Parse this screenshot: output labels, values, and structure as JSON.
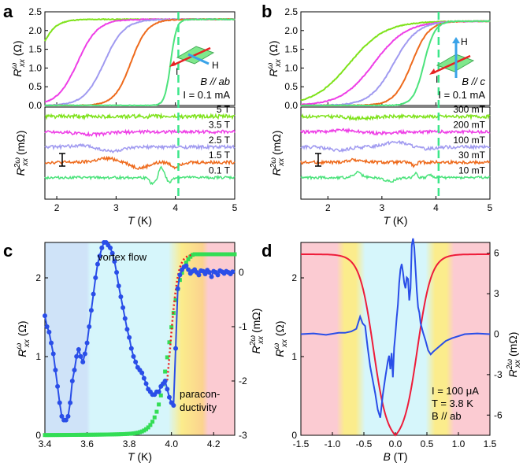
{
  "colors": {
    "green": "#7ee21a",
    "magenta": "#ee3ee6",
    "lavender": "#a09af0",
    "orange": "#ee6a1c",
    "mint": "#4ce37c",
    "red": "#ee1c3a",
    "blue": "#2a4ee8",
    "sq_green": "#33dd55",
    "dash_green": "#3ce68a",
    "dot_red": "#ee1c1c",
    "band_blue": "#cfe3f8",
    "band_cyan": "#d6f6fb",
    "band_yellow": "#fbec8c",
    "band_pink": "#fbcbd2"
  },
  "chart_data": [
    {
      "panel": "a",
      "type": "line",
      "xlabel": "T (K)",
      "xlim": [
        1.8,
        5
      ],
      "xticks": [
        "2",
        "3",
        "4",
        "5"
      ],
      "top": {
        "ylabel": "R_xx^ω (Ω)",
        "ylim": [
          0,
          2.5
        ],
        "yticks": [
          "0.0",
          "0.5",
          "1.0",
          "1.5",
          "2.0",
          "2.5"
        ],
        "series": [
          {
            "name": "5 T",
            "color": "green",
            "onset": 1.65,
            "width": 0.14,
            "rmax": 2.3
          },
          {
            "name": "3.5 T",
            "color": "magenta",
            "onset": 2.35,
            "width": 0.17,
            "rmax": 2.3
          },
          {
            "name": "2.5 T",
            "color": "lavender",
            "onset": 2.8,
            "width": 0.17,
            "rmax": 2.3
          },
          {
            "name": "1.5 T",
            "color": "orange",
            "onset": 3.25,
            "width": 0.14,
            "rmax": 2.3
          },
          {
            "name": "0.1 T",
            "color": "mint",
            "onset": 3.92,
            "width": 0.05,
            "rmax": 2.3
          }
        ],
        "annotations": [
          "B // ab",
          "I = 0.1 mA"
        ],
        "inset_labels": [
          "I",
          "H"
        ]
      },
      "bottom": {
        "ylabel": "R_xx^2ω (mΩ)",
        "curves": [
          {
            "label": "5 T",
            "color": "green",
            "offset": 0,
            "bumps": [],
            "noise": 0.6
          },
          {
            "label": "3.5 T",
            "color": "magenta",
            "offset": 1,
            "bumps": [
              [
                2.6,
                0.4,
                -0.8
              ]
            ],
            "noise": 0.5
          },
          {
            "label": "2.5 T",
            "color": "lavender",
            "offset": 2,
            "bumps": [
              [
                2.5,
                0.3,
                0.6
              ],
              [
                2.9,
                0.3,
                -1.4
              ]
            ],
            "noise": 0.5
          },
          {
            "label": "1.5 T",
            "color": "orange",
            "offset": 3,
            "bumps": [
              [
                2.85,
                0.25,
                1.2
              ],
              [
                3.4,
                0.2,
                -1.8
              ],
              [
                4.0,
                0.1,
                -1.5
              ]
            ],
            "noise": 0.5
          },
          {
            "label": "0.1 T",
            "color": "mint",
            "offset": 4,
            "bumps": [
              [
                3.62,
                0.08,
                -2.0
              ],
              [
                3.76,
                0.06,
                3.4
              ],
              [
                3.9,
                0.05,
                -1.6
              ]
            ],
            "noise": 0.4
          }
        ]
      },
      "vline": 4.05
    },
    {
      "panel": "b",
      "type": "line",
      "xlabel": "T (K)",
      "xlim": [
        1.5,
        5
      ],
      "xticks": [
        "2",
        "3",
        "4",
        "5"
      ],
      "top": {
        "ylabel": "R_xx^ω (Ω)",
        "ylim": [
          0,
          2.5
        ],
        "yticks": [
          "0.0",
          "0.5",
          "1.0",
          "1.5",
          "2.0",
          "2.5"
        ],
        "series": [
          {
            "name": "300 mT",
            "color": "green",
            "onset": 2.4,
            "width": 0.33,
            "rmax": 2.25
          },
          {
            "name": "200 mT",
            "color": "magenta",
            "onset": 2.85,
            "width": 0.3,
            "rmax": 2.25
          },
          {
            "name": "100 mT",
            "color": "lavender",
            "onset": 3.22,
            "width": 0.22,
            "rmax": 2.25
          },
          {
            "name": "30 mT",
            "color": "orange",
            "onset": 3.55,
            "width": 0.16,
            "rmax": 2.25
          },
          {
            "name": "10 mT",
            "color": "mint",
            "onset": 3.78,
            "width": 0.1,
            "rmax": 2.25
          }
        ],
        "annotations": [
          "B // c",
          "I = 0.1 mA"
        ],
        "inset_labels": [
          "I",
          "H"
        ]
      },
      "bottom": {
        "ylabel": "R_xx^2ω (mΩ)",
        "curves": [
          {
            "label": "300 mT",
            "color": "green",
            "offset": 0,
            "bumps": [
              [
                2.6,
                0.3,
                -0.6
              ]
            ],
            "noise": 0.5
          },
          {
            "label": "200 mT",
            "color": "magenta",
            "offset": 1,
            "bumps": [
              [
                2.3,
                0.25,
                0.5
              ],
              [
                3.0,
                0.3,
                -0.5
              ]
            ],
            "noise": 0.5
          },
          {
            "label": "100 mT",
            "color": "lavender",
            "offset": 2,
            "bumps": [
              [
                2.2,
                0.25,
                -1.1
              ],
              [
                3.25,
                0.3,
                1.6
              ],
              [
                3.8,
                0.2,
                -0.6
              ]
            ],
            "noise": 0.5
          },
          {
            "label": "30 mT",
            "color": "orange",
            "offset": 3,
            "bumps": [
              [
                2.5,
                0.2,
                0.8
              ],
              [
                3.6,
                0.06,
                -1.2
              ]
            ],
            "noise": 0.5
          },
          {
            "label": "10 mT",
            "color": "mint",
            "offset": 4,
            "bumps": [
              [
                2.55,
                0.1,
                1.6
              ],
              [
                3.15,
                0.15,
                -1.2
              ],
              [
                3.62,
                0.05,
                1.4
              ],
              [
                3.88,
                0.05,
                1.0
              ]
            ],
            "noise": 0.4
          }
        ]
      },
      "vline": 4.05
    },
    {
      "panel": "c",
      "type": "line+scatter",
      "xlabel": "T (K)",
      "xlim": [
        3.4,
        4.3
      ],
      "xticks": [
        "3.4",
        "3.6",
        "3.8",
        "4.0",
        "4.2"
      ],
      "ylabel": "R_xx^ω (Ω)",
      "ylim": [
        0,
        2.45
      ],
      "yticks": [
        "0",
        "1",
        "2"
      ],
      "y2label": "R_xx^2ω (mΩ)",
      "y2lim": [
        -3,
        0.55
      ],
      "y2ticks": [
        "0",
        "-1",
        "-2",
        "-3"
      ],
      "series": [
        {
          "name": "R_xx^ω",
          "color": "sq_green",
          "marker": "square",
          "axis": "left",
          "onset": 3.99,
          "width": 0.03,
          "rmax": 2.3,
          "foot": 0.012
        },
        {
          "name": "R_xx^2ω",
          "color": "blue",
          "marker": "circle",
          "axis": "right",
          "x": [
            3.4,
            3.41,
            3.42,
            3.43,
            3.44,
            3.45,
            3.46,
            3.47,
            3.48,
            3.49,
            3.5,
            3.51,
            3.52,
            3.53,
            3.54,
            3.55,
            3.56,
            3.57,
            3.58,
            3.59,
            3.6,
            3.61,
            3.62,
            3.63,
            3.64,
            3.65,
            3.66,
            3.67,
            3.68,
            3.69,
            3.7,
            3.71,
            3.72,
            3.73,
            3.74,
            3.75,
            3.76,
            3.77,
            3.78,
            3.79,
            3.8,
            3.81,
            3.82,
            3.83,
            3.84,
            3.85,
            3.86,
            3.87,
            3.88,
            3.89,
            3.9,
            3.91,
            3.92,
            3.93,
            3.94,
            3.95,
            3.96,
            3.97,
            3.98,
            3.99,
            4.0,
            4.01,
            4.02,
            4.03,
            4.04,
            4.05,
            4.06,
            4.07,
            4.08,
            4.09,
            4.1,
            4.11,
            4.12,
            4.13,
            4.14,
            4.15,
            4.16,
            4.17,
            4.18,
            4.19,
            4.2,
            4.21,
            4.22,
            4.23,
            4.24,
            4.25,
            4.26,
            4.27,
            4.28,
            4.29
          ],
          "values": [
            -0.8,
            -1.0,
            -1.1,
            -1.3,
            -1.5,
            -1.8,
            -2.1,
            -2.4,
            -2.65,
            -2.72,
            -2.72,
            -2.65,
            -2.4,
            -2.0,
            -1.8,
            -1.55,
            -1.42,
            -1.55,
            -1.65,
            -1.5,
            -1.3,
            -1.0,
            -0.7,
            -0.4,
            -0.1,
            0.15,
            0.3,
            0.45,
            0.55,
            0.55,
            0.5,
            0.45,
            0.35,
            0.2,
            0.0,
            -0.25,
            -0.45,
            -0.65,
            -0.85,
            -1.05,
            -1.2,
            -1.4,
            -1.55,
            -1.65,
            -1.75,
            -1.8,
            -1.85,
            -1.95,
            -2.05,
            -2.15,
            -2.2,
            -2.25,
            -2.25,
            -2.2,
            -2.2,
            -2.1,
            -2.05,
            -2.0,
            -2.15,
            -2.3,
            -2.4,
            -2.45,
            -1.4,
            -0.3,
            -0.05,
            0.05,
            0.1,
            0.12,
            0.05,
            -0.02,
            0.02,
            0.05,
            0.0,
            -0.05,
            0.03,
            0.02,
            -0.03,
            0.04,
            0.0,
            -0.08,
            0.02,
            0.0,
            -0.05,
            0.03,
            0.01,
            -0.02,
            0.02,
            0.0,
            -0.03,
            0.01
          ]
        },
        {
          "name": "fit",
          "color": "dot_red",
          "style": "dotted",
          "axis": "left",
          "x0": 3.98,
          "x1": 4.1
        }
      ],
      "bands": [
        {
          "from": 3.4,
          "to": 3.6,
          "color": "band_blue"
        },
        {
          "from": 3.6,
          "to": 4.0,
          "color": "band_cyan"
        },
        {
          "from": 4.0,
          "to": 4.15,
          "color": "band_yellow"
        },
        {
          "from": 4.15,
          "to": 4.3,
          "color": "band_pink"
        }
      ],
      "annotations": [
        "vortex flow",
        "paracon-",
        "ductivity"
      ]
    },
    {
      "panel": "d",
      "type": "line",
      "xlabel": "B (T)",
      "xlim": [
        -1.5,
        1.5
      ],
      "xticks": [
        "-1.5",
        "-1.0",
        "-0.5",
        "0.0",
        "0.5",
        "1.0",
        "1.5"
      ],
      "ylabel": "R_xx^ω (Ω)",
      "ylim": [
        0,
        2.45
      ],
      "yticks": [
        "0",
        "1",
        "2"
      ],
      "y2label": "R_xx^2ω (mΩ)",
      "y2lim": [
        -7.5,
        6.8
      ],
      "y2ticks": [
        "6",
        "3",
        "0",
        "-3",
        "-6"
      ],
      "series": [
        {
          "name": "R_xx^ω",
          "color": "red",
          "axis": "left",
          "shape": "V",
          "min": 0.0,
          "max": 2.3,
          "b0": 0.68,
          "w": 0.1
        },
        {
          "name": "R_xx^2ω",
          "color": "blue",
          "axis": "right",
          "x": [
            -1.5,
            -1.3,
            -1.1,
            -0.9,
            -0.8,
            -0.7,
            -0.62,
            -0.56,
            -0.52,
            -0.48,
            -0.44,
            -0.4,
            -0.36,
            -0.32,
            -0.28,
            -0.24,
            -0.2,
            -0.16,
            -0.12,
            -0.1,
            -0.08,
            -0.06,
            -0.04,
            -0.02,
            0.0,
            0.02,
            0.04,
            0.06,
            0.08,
            0.1,
            0.12,
            0.14,
            0.16,
            0.18,
            0.2,
            0.22,
            0.24,
            0.26,
            0.28,
            0.3,
            0.32,
            0.34,
            0.36,
            0.38,
            0.4,
            0.44,
            0.48,
            0.52,
            0.56,
            0.6,
            0.7,
            0.8,
            0.9,
            1.1,
            1.3,
            1.5
          ],
          "values": [
            0,
            0.05,
            -0.05,
            0.1,
            0.1,
            0.2,
            0.4,
            1.3,
            0.8,
            0.6,
            -1.0,
            -2.4,
            -3.4,
            -4.4,
            -5.6,
            -6.2,
            -4.5,
            -3.2,
            -2.0,
            -1.6,
            -2.6,
            -1.4,
            -3.2,
            -1.0,
            0.0,
            1.2,
            2.2,
            3.8,
            4.8,
            5.2,
            4.6,
            3.8,
            3.4,
            4.2,
            4.1,
            2.5,
            3.4,
            6.6,
            7.1,
            6.4,
            4.8,
            3.2,
            2.0,
            1.6,
            0.8,
            0.1,
            -0.5,
            -1.2,
            -1.5,
            -1.3,
            -0.9,
            -0.5,
            -0.3,
            0.0,
            0.05,
            0.0
          ]
        }
      ],
      "bands": [
        {
          "from": -1.5,
          "to": -0.85,
          "color": "band_pink"
        },
        {
          "from": -0.85,
          "to": -0.55,
          "color": "band_yellow"
        },
        {
          "from": -0.55,
          "to": 0.55,
          "color": "band_cyan"
        },
        {
          "from": 0.55,
          "to": 0.85,
          "color": "band_yellow"
        },
        {
          "from": 0.85,
          "to": 1.5,
          "color": "band_pink"
        }
      ],
      "annotations": [
        "I = 100 μA",
        "T = 3.8 K",
        "B // ab"
      ]
    }
  ]
}
